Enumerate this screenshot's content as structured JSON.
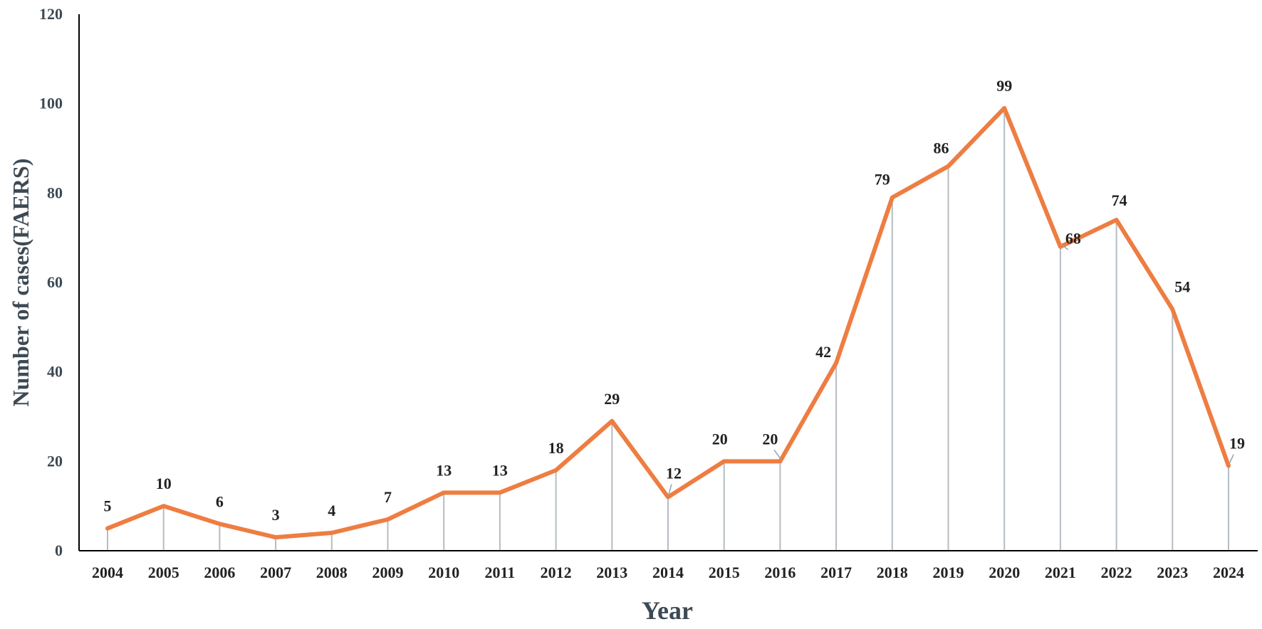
{
  "chart_data": {
    "type": "line",
    "title": "",
    "xlabel": "Year",
    "ylabel": "Number of cases(FAERS)",
    "ylim": [
      0,
      120
    ],
    "yticks": [
      0,
      20,
      40,
      60,
      80,
      100,
      120
    ],
    "grid": false,
    "drop_lines": true,
    "categories": [
      "2004",
      "2005",
      "2006",
      "2007",
      "2008",
      "2009",
      "2010",
      "2011",
      "2012",
      "2013",
      "2014",
      "2015",
      "2016",
      "2017",
      "2018",
      "2019",
      "2020",
      "2021",
      "2022",
      "2023",
      "2024"
    ],
    "series": [
      {
        "name": "Number of cases",
        "values": [
          5,
          10,
          6,
          3,
          4,
          7,
          13,
          13,
          18,
          29,
          12,
          20,
          20,
          42,
          79,
          86,
          99,
          68,
          74,
          54,
          19
        ],
        "labels": [
          "5",
          "10",
          "6",
          "3",
          "4",
          "7",
          "13",
          "13",
          "18",
          "29",
          "12",
          "20",
          "20",
          "42",
          "79",
          "86",
          "99",
          "68",
          "74",
          "54",
          "19"
        ],
        "color": "#ee7d42"
      }
    ],
    "axis_color": "#000000",
    "drop_line_color": "#b5bcc2",
    "tick_label_color": "#3d4a55"
  }
}
